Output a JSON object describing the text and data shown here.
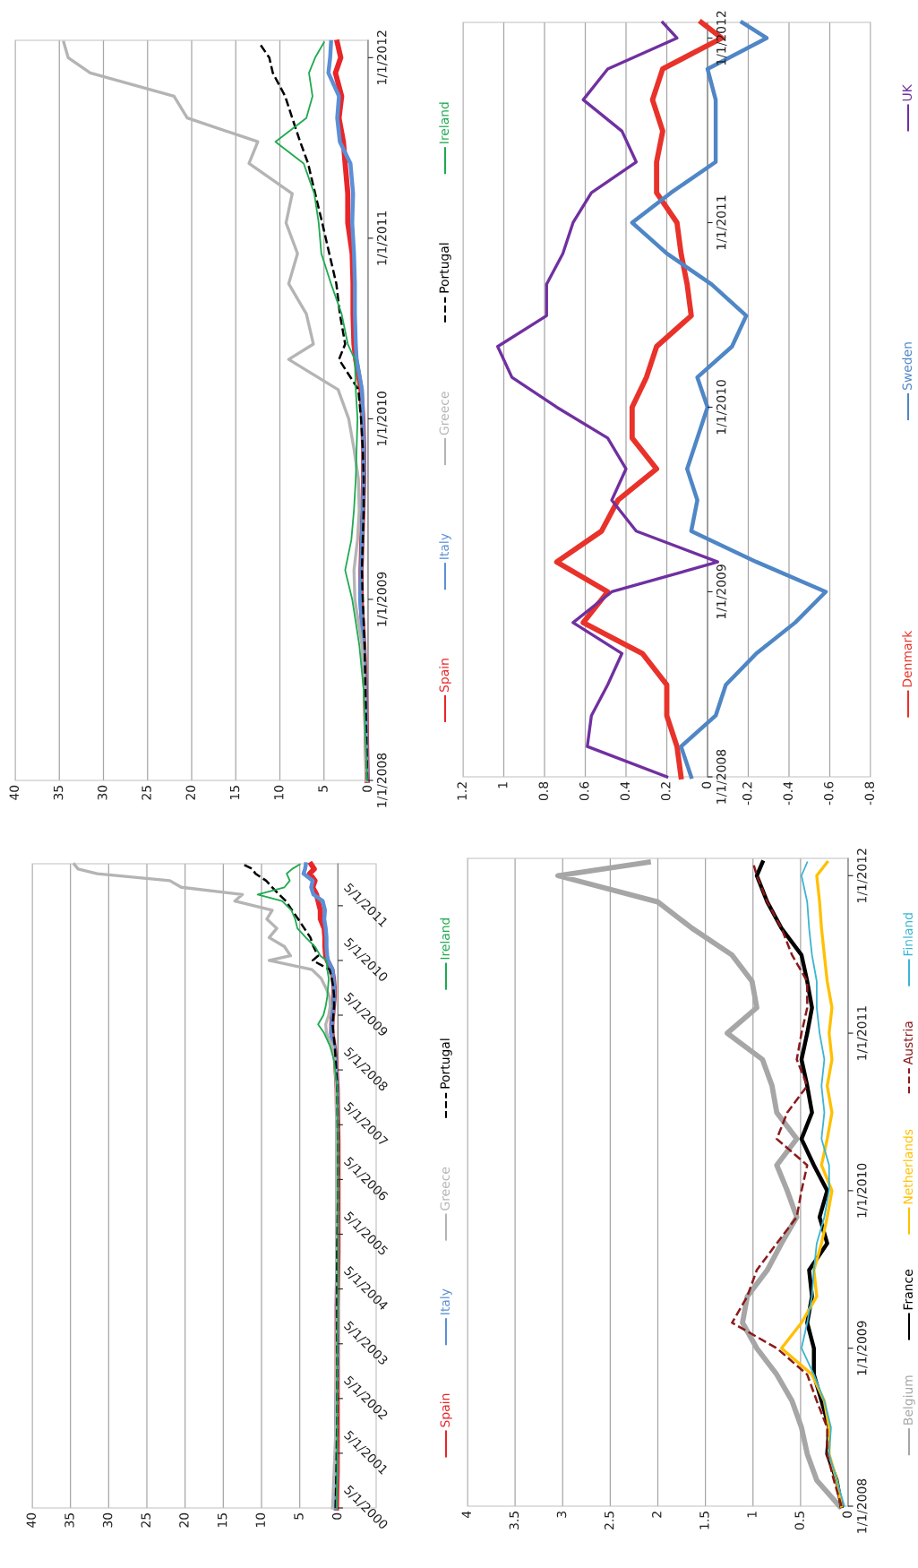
{
  "chart_data": [
    {
      "type": "line",
      "orientation": "horizontal",
      "grid": "x",
      "legend": "right",
      "x": [
        "2000-05-01",
        "2001-01-01",
        "2002-01-01",
        "2003-01-01",
        "2004-01-01",
        "2005-01-01",
        "2006-01-01",
        "2007-01-01",
        "2008-01-01",
        "2008-04-01",
        "2008-07-01",
        "2008-10-01",
        "2009-01-01",
        "2009-03-01",
        "2009-05-01",
        "2009-07-01",
        "2009-09-01",
        "2009-11-01",
        "2010-01-01",
        "2010-03-01",
        "2010-05-01",
        "2010-06-01",
        "2010-08-01",
        "2010-10-01",
        "2010-12-01",
        "2011-02-01",
        "2011-04-01",
        "2011-06-01",
        "2011-07-15",
        "2011-09-01",
        "2011-10-15",
        "2011-12-01",
        "2012-01-01",
        "2012-02-01"
      ],
      "ylim": [
        "2000-05-01",
        "2012-02-05"
      ],
      "yticks": [
        {
          "value": "2000-05-01",
          "label": "5/1/2000"
        },
        {
          "value": "2001-05-01",
          "label": "5/1/2001"
        },
        {
          "value": "2002-05-01",
          "label": "5/1/2002"
        },
        {
          "value": "2003-05-01",
          "label": "5/1/2003"
        },
        {
          "value": "2004-05-01",
          "label": "5/1/2004"
        },
        {
          "value": "2005-05-01",
          "label": "5/1/2005"
        },
        {
          "value": "2006-05-01",
          "label": "5/1/2006"
        },
        {
          "value": "2007-05-01",
          "label": "5/1/2007"
        },
        {
          "value": "2008-05-01",
          "label": "5/1/2008"
        },
        {
          "value": "2009-05-01",
          "label": "5/1/2009"
        },
        {
          "value": "2010-05-01",
          "label": "5/1/2010"
        },
        {
          "value": "2011-05-01",
          "label": "5/1/2011"
        }
      ],
      "xlim": [
        40,
        -5
      ],
      "xticks": [
        0,
        5,
        10,
        15,
        20,
        25,
        30,
        35,
        40
      ],
      "series": [
        {
          "name": "Spain",
          "color": "#e8262a",
          "values": [
            0.2,
            0.1,
            0.1,
            0.1,
            0.1,
            0.0,
            0.0,
            0.0,
            0.1,
            0.2,
            0.3,
            0.5,
            0.8,
            0.8,
            0.7,
            0.6,
            0.5,
            0.5,
            0.6,
            0.8,
            1.4,
            1.6,
            1.7,
            1.7,
            1.8,
            2.3,
            2.3,
            2.6,
            2.8,
            3.3,
            3.0,
            3.7,
            3.1,
            3.5
          ]
        },
        {
          "name": "Italy",
          "color": "#5b8fd6",
          "values": [
            0.3,
            0.2,
            0.2,
            0.1,
            0.1,
            0.1,
            0.1,
            0.1,
            0.1,
            0.2,
            0.3,
            0.5,
            0.9,
            0.8,
            0.7,
            0.6,
            0.5,
            0.5,
            0.6,
            0.7,
            1.3,
            1.4,
            1.5,
            1.5,
            1.6,
            1.8,
            1.7,
            2.0,
            3.2,
            3.5,
            3.3,
            4.5,
            4.3,
            4.2
          ]
        },
        {
          "name": "Greece",
          "color": "#b4b4b4",
          "values": [
            0.7,
            0.5,
            0.2,
            0.2,
            0.1,
            0.2,
            0.2,
            0.2,
            0.2,
            0.3,
            0.4,
            0.7,
            1.5,
            1.6,
            1.2,
            1.0,
            1.1,
            1.6,
            2.2,
            3.4,
            9.0,
            6.2,
            7.0,
            9.0,
            8.0,
            9.3,
            8.6,
            13.5,
            12.5,
            20.5,
            22.0,
            31.5,
            34.0,
            34.5
          ]
        },
        {
          "name": "Portugal",
          "color": "#000000",
          "line_style": "dashed",
          "values": [
            0.3,
            0.2,
            0.1,
            0.1,
            0.1,
            0.1,
            0.0,
            0.0,
            0.1,
            0.2,
            0.3,
            0.4,
            0.6,
            0.7,
            0.6,
            0.5,
            0.5,
            0.6,
            0.8,
            1.1,
            3.3,
            2.6,
            3.2,
            3.6,
            4.4,
            5.2,
            6.0,
            6.8,
            7.7,
            8.6,
            9.4,
            10.8,
            11.2,
            12.4
          ]
        },
        {
          "name": "Ireland",
          "color": "#1eaa50",
          "values": [
            0.2,
            0.1,
            0.1,
            0.1,
            0.0,
            0.0,
            0.0,
            0.0,
            0.1,
            0.3,
            0.5,
            1.0,
            1.8,
            2.6,
            1.9,
            1.6,
            1.4,
            1.3,
            1.2,
            1.4,
            1.5,
            2.3,
            3.0,
            4.2,
            5.3,
            5.6,
            6.1,
            7.3,
            10.5,
            7.0,
            6.3,
            6.7,
            6.0,
            5.0
          ]
        }
      ]
    },
    {
      "type": "line",
      "orientation": "horizontal",
      "grid": "x",
      "legend": "right",
      "x": [
        "2008-01-01",
        "2008-04-01",
        "2008-07-01",
        "2008-10-01",
        "2009-01-01",
        "2009-03-01",
        "2009-05-01",
        "2009-07-01",
        "2009-09-01",
        "2009-11-01",
        "2010-01-01",
        "2010-03-01",
        "2010-05-01",
        "2010-06-01",
        "2010-08-01",
        "2010-10-01",
        "2010-12-01",
        "2011-02-01",
        "2011-04-01",
        "2011-06-01",
        "2011-07-15",
        "2011-09-01",
        "2011-10-15",
        "2011-12-01",
        "2012-01-01",
        "2012-02-01"
      ],
      "ylim": [
        "2008-01-01",
        "2012-02-05"
      ],
      "yticks": [
        {
          "value": "2008-01-01",
          "label": "1/1/2008"
        },
        {
          "value": "2009-01-01",
          "label": "1/1/2009"
        },
        {
          "value": "2010-01-01",
          "label": "1/1/2010"
        },
        {
          "value": "2011-01-01",
          "label": "1/1/2011"
        },
        {
          "value": "2012-01-01",
          "label": "1/1/2012"
        }
      ],
      "xlim": [
        40,
        0
      ],
      "xticks": [
        0,
        5,
        10,
        15,
        20,
        25,
        30,
        35,
        40
      ],
      "series": [
        {
          "name": "Spain",
          "color": "#e8262a",
          "values": [
            0.1,
            0.2,
            0.3,
            0.5,
            0.8,
            0.8,
            0.7,
            0.6,
            0.5,
            0.5,
            0.6,
            0.8,
            1.4,
            1.6,
            1.7,
            1.7,
            1.8,
            2.3,
            2.3,
            2.6,
            2.8,
            3.3,
            3.0,
            3.7,
            3.1,
            3.5
          ]
        },
        {
          "name": "Italy",
          "color": "#5b8fd6",
          "values": [
            0.1,
            0.2,
            0.3,
            0.5,
            0.9,
            0.8,
            0.7,
            0.6,
            0.5,
            0.5,
            0.6,
            0.7,
            1.3,
            1.4,
            1.5,
            1.5,
            1.6,
            1.8,
            1.7,
            2.0,
            3.2,
            3.5,
            3.3,
            4.5,
            4.3,
            4.2
          ]
        },
        {
          "name": "Greece",
          "color": "#b4b4b4",
          "values": [
            0.2,
            0.3,
            0.4,
            0.7,
            1.5,
            1.6,
            1.2,
            1.0,
            1.1,
            1.6,
            2.2,
            3.4,
            9.0,
            6.2,
            7.0,
            9.0,
            8.0,
            9.3,
            8.6,
            13.5,
            12.5,
            20.5,
            22.0,
            31.5,
            34.0,
            34.5
          ]
        },
        {
          "name": "Portugal",
          "color": "#000000",
          "line_style": "dashed",
          "values": [
            0.1,
            0.2,
            0.3,
            0.4,
            0.6,
            0.7,
            0.6,
            0.5,
            0.5,
            0.6,
            0.8,
            1.1,
            3.3,
            2.6,
            3.2,
            3.6,
            4.4,
            5.2,
            6.0,
            6.8,
            7.7,
            8.6,
            9.4,
            10.8,
            11.2,
            12.4
          ]
        },
        {
          "name": "Ireland",
          "color": "#1eaa50",
          "values": [
            0.1,
            0.3,
            0.5,
            1.0,
            1.8,
            2.6,
            1.9,
            1.6,
            1.4,
            1.3,
            1.2,
            1.4,
            1.5,
            2.3,
            3.0,
            4.2,
            5.3,
            5.6,
            6.1,
            7.3,
            10.5,
            7.0,
            6.3,
            6.7,
            6.0,
            5.0
          ]
        }
      ]
    },
    {
      "type": "line",
      "orientation": "horizontal",
      "grid": "x",
      "legend": "right",
      "x": [
        "2008-01-01",
        "2008-03-01",
        "2008-05-01",
        "2008-07-01",
        "2008-09-01",
        "2008-11-01",
        "2009-01-01",
        "2009-03-01",
        "2009-05-01",
        "2009-07-01",
        "2009-09-01",
        "2009-11-01",
        "2010-01-01",
        "2010-03-01",
        "2010-05-01",
        "2010-07-01",
        "2010-09-01",
        "2010-11-01",
        "2011-01-01",
        "2011-03-01",
        "2011-05-01",
        "2011-07-01",
        "2011-09-01",
        "2011-11-01",
        "2012-01-01",
        "2012-02-01"
      ],
      "ylim": [
        "2008-01-01",
        "2012-02-10"
      ],
      "yticks": [
        {
          "value": "2008-01-01",
          "label": "1/1/2008"
        },
        {
          "value": "2009-01-01",
          "label": "1/1/2009"
        },
        {
          "value": "2010-01-01",
          "label": "1/1/2010"
        },
        {
          "value": "2011-01-01",
          "label": "1/1/2011"
        },
        {
          "value": "2012-01-01",
          "label": "1/1/2012"
        }
      ],
      "xlim": [
        4,
        0
      ],
      "xticks": [
        0,
        0.5,
        1,
        1.5,
        2,
        2.5,
        3,
        3.5,
        4
      ],
      "series": [
        {
          "name": "Belgium",
          "color": "#a6a6a6",
          "values": [
            0.09,
            0.33,
            0.43,
            0.49,
            0.59,
            0.75,
            0.96,
            1.11,
            1.06,
            0.85,
            0.7,
            0.54,
            0.64,
            0.75,
            0.54,
            0.75,
            0.8,
            0.9,
            1.27,
            0.96,
            1.01,
            1.22,
            1.64,
            2.0,
            3.05,
            2.1
          ]
        },
        {
          "name": "France",
          "color": "#000000",
          "values": [
            0.07,
            0.12,
            0.22,
            0.2,
            0.28,
            0.36,
            0.36,
            0.43,
            0.38,
            0.41,
            0.22,
            0.3,
            0.22,
            0.36,
            0.49,
            0.38,
            0.43,
            0.49,
            0.43,
            0.38,
            0.43,
            0.49,
            0.7,
            0.85,
            0.96,
            0.9
          ]
        },
        {
          "name": "Netherlands",
          "color": "#ffc000",
          "values": [
            0.07,
            0.12,
            0.2,
            0.2,
            0.25,
            0.38,
            0.7,
            0.49,
            0.33,
            0.36,
            0.28,
            0.22,
            0.17,
            0.28,
            0.22,
            0.17,
            0.22,
            0.17,
            0.2,
            0.17,
            0.22,
            0.25,
            0.28,
            0.3,
            0.33,
            0.22
          ]
        },
        {
          "name": "Austria",
          "color": "#8b1a1a",
          "line_style": "dashed",
          "values": [
            0.07,
            0.15,
            0.22,
            0.22,
            0.33,
            0.43,
            0.75,
            1.22,
            1.06,
            0.96,
            0.75,
            0.54,
            0.49,
            0.43,
            0.75,
            0.64,
            0.43,
            0.54,
            0.49,
            0.43,
            0.43,
            0.59,
            0.7,
            0.85,
            0.96,
            1.0
          ]
        },
        {
          "name": "Finland",
          "color": "#3cb4d2",
          "values": [
            0.04,
            0.12,
            0.2,
            0.18,
            0.25,
            0.36,
            0.49,
            0.43,
            0.38,
            0.36,
            0.33,
            0.25,
            0.2,
            0.2,
            0.28,
            0.25,
            0.28,
            0.25,
            0.3,
            0.33,
            0.33,
            0.38,
            0.41,
            0.43,
            0.49,
            0.43
          ]
        }
      ]
    },
    {
      "type": "line",
      "orientation": "horizontal",
      "grid": "x",
      "legend": "right",
      "x": [
        "2008-01-01",
        "2008-03-01",
        "2008-05-01",
        "2008-07-01",
        "2008-09-01",
        "2008-11-01",
        "2009-01-01",
        "2009-03-01",
        "2009-05-01",
        "2009-07-01",
        "2009-09-01",
        "2009-11-01",
        "2010-01-01",
        "2010-03-01",
        "2010-05-01",
        "2010-07-01",
        "2010-09-01",
        "2010-11-01",
        "2011-01-01",
        "2011-03-01",
        "2011-05-01",
        "2011-07-01",
        "2011-09-01",
        "2011-11-01",
        "2012-01-01",
        "2012-02-01"
      ],
      "ylim": [
        "2008-01-01",
        "2012-02-01"
      ],
      "yticks": [
        {
          "value": "2008-01-01",
          "label": "1/1/2008"
        },
        {
          "value": "2009-01-01",
          "label": "1/1/2009"
        },
        {
          "value": "2010-01-01",
          "label": "1/1/2010"
        },
        {
          "value": "2011-01-01",
          "label": "1/1/2011"
        },
        {
          "value": "2012-01-01",
          "label": "1/1/2012"
        }
      ],
      "xlim": [
        1.2,
        -0.8
      ],
      "xticks": [
        -0.8,
        -0.6,
        -0.4,
        -0.2,
        0,
        0.2,
        0.4,
        0.6,
        0.8,
        1,
        1.2
      ],
      "series": [
        {
          "name": "Denmark",
          "color": "#e8322a",
          "values": [
            0.13,
            0.15,
            0.2,
            0.2,
            0.32,
            0.61,
            0.49,
            0.74,
            0.52,
            0.44,
            0.25,
            0.37,
            0.37,
            0.3,
            0.25,
            0.08,
            0.1,
            0.13,
            0.15,
            0.25,
            0.25,
            0.22,
            0.27,
            0.22,
            -0.07,
            0.03
          ]
        },
        {
          "name": "Sweden",
          "color": "#4f86c6",
          "values": [
            0.08,
            0.13,
            -0.04,
            -0.09,
            -0.24,
            -0.43,
            -0.58,
            -0.24,
            0.08,
            0.05,
            0.1,
            0.05,
            0.0,
            0.05,
            -0.12,
            -0.19,
            -0.02,
            0.2,
            0.37,
            0.18,
            -0.04,
            -0.04,
            -0.04,
            0.0,
            -0.29,
            -0.17
          ]
        },
        {
          "name": "UK",
          "color": "#7030a0",
          "values": [
            0.2,
            0.59,
            0.57,
            0.49,
            0.42,
            0.66,
            0.47,
            -0.05,
            0.35,
            0.47,
            0.4,
            0.49,
            0.74,
            0.96,
            1.03,
            0.79,
            0.79,
            0.71,
            0.66,
            0.57,
            0.35,
            0.42,
            0.61,
            0.49,
            0.15,
            0.22
          ]
        }
      ]
    }
  ]
}
